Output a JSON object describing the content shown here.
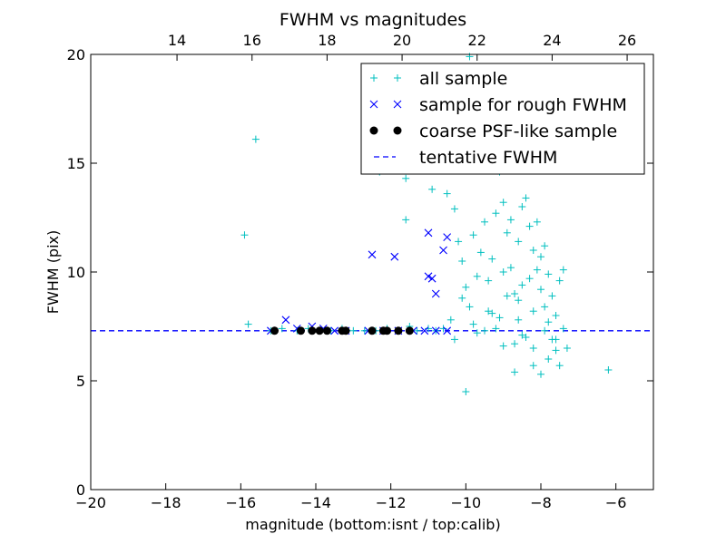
{
  "chart_data": {
    "type": "scatter",
    "title": "FWHM vs magnitudes",
    "xlabel": "magnitude (bottom:isnt / top:calib)",
    "ylabel": "FWHM (pix)",
    "xlim": [
      -20,
      -5
    ],
    "ylim": [
      0,
      20
    ],
    "x_ticks": [
      -20,
      -18,
      -16,
      -14,
      -12,
      -10,
      -8,
      -6
    ],
    "x_tick_labels": [
      "−20",
      "−18",
      "−16",
      "−14",
      "−12",
      "−10",
      "−8",
      "−6"
    ],
    "y_ticks": [
      0,
      5,
      10,
      15,
      20
    ],
    "y_tick_labels": [
      "0",
      "5",
      "10",
      "15",
      "20"
    ],
    "top_axis": {
      "label_values": [
        14,
        16,
        18,
        20,
        22,
        24,
        26
      ],
      "labels": [
        "14",
        "16",
        "18",
        "20",
        "22",
        "24",
        "26"
      ],
      "bottom_equivalent": [
        -17.7,
        -15.7,
        -13.7,
        -11.7,
        -9.7,
        -7.7,
        -5.7
      ]
    },
    "grid": false,
    "legend_position": "top-right",
    "tentative_fwhm": 7.3,
    "series": [
      {
        "name": "all sample",
        "marker": "plus",
        "color": "#00bfbf",
        "points": [
          [
            -15.9,
            11.7
          ],
          [
            -15.6,
            16.1
          ],
          [
            -15.8,
            7.6
          ],
          [
            -15.2,
            7.3
          ],
          [
            -14.9,
            7.4
          ],
          [
            -14.5,
            7.3
          ],
          [
            -14.2,
            7.4
          ],
          [
            -13.9,
            7.3
          ],
          [
            -13.6,
            7.3
          ],
          [
            -13.3,
            7.4
          ],
          [
            -13.0,
            7.3
          ],
          [
            -12.7,
            7.3
          ],
          [
            -12.4,
            7.3
          ],
          [
            -12.1,
            7.4
          ],
          [
            -11.8,
            7.3
          ],
          [
            -11.5,
            7.5
          ],
          [
            -11.3,
            7.3
          ],
          [
            -11.0,
            7.4
          ],
          [
            -10.8,
            7.3
          ],
          [
            -10.6,
            7.4
          ],
          [
            -11.6,
            12.4
          ],
          [
            -11.6,
            14.3
          ],
          [
            -12.3,
            14.6
          ],
          [
            -10.9,
            13.8
          ],
          [
            -10.5,
            13.6
          ],
          [
            -10.3,
            12.9
          ],
          [
            -10.2,
            11.4
          ],
          [
            -10.1,
            10.5
          ],
          [
            -10.0,
            9.3
          ],
          [
            -9.9,
            8.4
          ],
          [
            -9.8,
            7.6
          ],
          [
            -9.7,
            7.2
          ],
          [
            -9.6,
            10.9
          ],
          [
            -9.5,
            12.3
          ],
          [
            -9.4,
            9.6
          ],
          [
            -9.3,
            8.1
          ],
          [
            -9.2,
            7.4
          ],
          [
            -9.1,
            14.6
          ],
          [
            -9.0,
            13.2
          ],
          [
            -8.9,
            11.8
          ],
          [
            -8.8,
            10.2
          ],
          [
            -8.7,
            9.0
          ],
          [
            -8.6,
            7.8
          ],
          [
            -8.5,
            7.1
          ],
          [
            -8.4,
            13.4
          ],
          [
            -8.3,
            12.1
          ],
          [
            -8.2,
            11.0
          ],
          [
            -8.1,
            10.1
          ],
          [
            -8.0,
            9.2
          ],
          [
            -7.9,
            8.4
          ],
          [
            -7.8,
            7.7
          ],
          [
            -7.7,
            6.9
          ],
          [
            -7.6,
            6.4
          ],
          [
            -7.5,
            9.6
          ],
          [
            -7.4,
            10.1
          ],
          [
            -7.3,
            6.5
          ],
          [
            -9.0,
            6.6
          ],
          [
            -8.7,
            5.4
          ],
          [
            -8.2,
            5.7
          ],
          [
            -8.0,
            5.3
          ],
          [
            -7.8,
            6.0
          ],
          [
            -7.5,
            5.7
          ],
          [
            -10.0,
            4.5
          ],
          [
            -6.2,
            5.5
          ],
          [
            -9.9,
            19.9
          ],
          [
            -10.3,
            6.9
          ],
          [
            -9.8,
            11.7
          ],
          [
            -9.2,
            12.7
          ],
          [
            -8.5,
            13.0
          ],
          [
            -8.1,
            12.3
          ],
          [
            -8.3,
            9.7
          ],
          [
            -8.6,
            8.7
          ],
          [
            -8.9,
            8.9
          ],
          [
            -9.4,
            8.2
          ],
          [
            -8.8,
            12.4
          ],
          [
            -8.2,
            8.2
          ],
          [
            -7.9,
            11.2
          ],
          [
            -7.7,
            8.9
          ],
          [
            -7.6,
            8.0
          ],
          [
            -7.4,
            7.4
          ],
          [
            -8.4,
            7.0
          ],
          [
            -8.7,
            6.7
          ],
          [
            -9.1,
            7.9
          ],
          [
            -9.5,
            7.3
          ],
          [
            -10.4,
            7.8
          ],
          [
            -10.1,
            8.8
          ],
          [
            -9.7,
            9.8
          ],
          [
            -9.3,
            10.6
          ],
          [
            -8.6,
            11.4
          ],
          [
            -8.0,
            10.7
          ],
          [
            -7.8,
            9.9
          ],
          [
            -8.2,
            6.5
          ],
          [
            -7.6,
            6.9
          ],
          [
            -7.9,
            7.3
          ],
          [
            -8.5,
            9.4
          ],
          [
            -9.0,
            10.0
          ]
        ]
      },
      {
        "name": "sample for rough FWHM",
        "marker": "x",
        "color": "#0000ff",
        "points": [
          [
            -15.2,
            7.3
          ],
          [
            -14.8,
            7.8
          ],
          [
            -14.5,
            7.4
          ],
          [
            -14.1,
            7.5
          ],
          [
            -13.8,
            7.4
          ],
          [
            -13.5,
            7.3
          ],
          [
            -13.2,
            7.3
          ],
          [
            -12.6,
            7.3
          ],
          [
            -12.2,
            7.3
          ],
          [
            -11.8,
            7.3
          ],
          [
            -11.4,
            7.3
          ],
          [
            -11.1,
            7.3
          ],
          [
            -10.8,
            7.3
          ],
          [
            -10.5,
            7.3
          ],
          [
            -12.5,
            10.8
          ],
          [
            -11.9,
            10.7
          ],
          [
            -11.0,
            11.8
          ],
          [
            -10.6,
            11.0
          ],
          [
            -10.5,
            11.6
          ],
          [
            -11.0,
            9.8
          ],
          [
            -10.9,
            9.7
          ],
          [
            -10.8,
            9.0
          ]
        ]
      },
      {
        "name": "coarse PSF-like sample",
        "marker": "dot",
        "color": "#000000",
        "points": [
          [
            -15.1,
            7.3
          ],
          [
            -14.4,
            7.3
          ],
          [
            -14.1,
            7.3
          ],
          [
            -13.9,
            7.3
          ],
          [
            -13.7,
            7.3
          ],
          [
            -13.3,
            7.3
          ],
          [
            -13.2,
            7.3
          ],
          [
            -12.5,
            7.3
          ],
          [
            -12.2,
            7.3
          ],
          [
            -12.1,
            7.3
          ],
          [
            -11.8,
            7.3
          ],
          [
            -11.5,
            7.3
          ]
        ]
      }
    ],
    "legend": [
      {
        "label": "all sample",
        "marker": "plus",
        "color": "#00bfbf"
      },
      {
        "label": "sample for rough FWHM",
        "marker": "x",
        "color": "#0000ff"
      },
      {
        "label": "coarse PSF-like sample",
        "marker": "dot",
        "color": "#000000"
      },
      {
        "label": "tentative FWHM",
        "marker": "dashed-line",
        "color": "#0000ff"
      }
    ]
  }
}
